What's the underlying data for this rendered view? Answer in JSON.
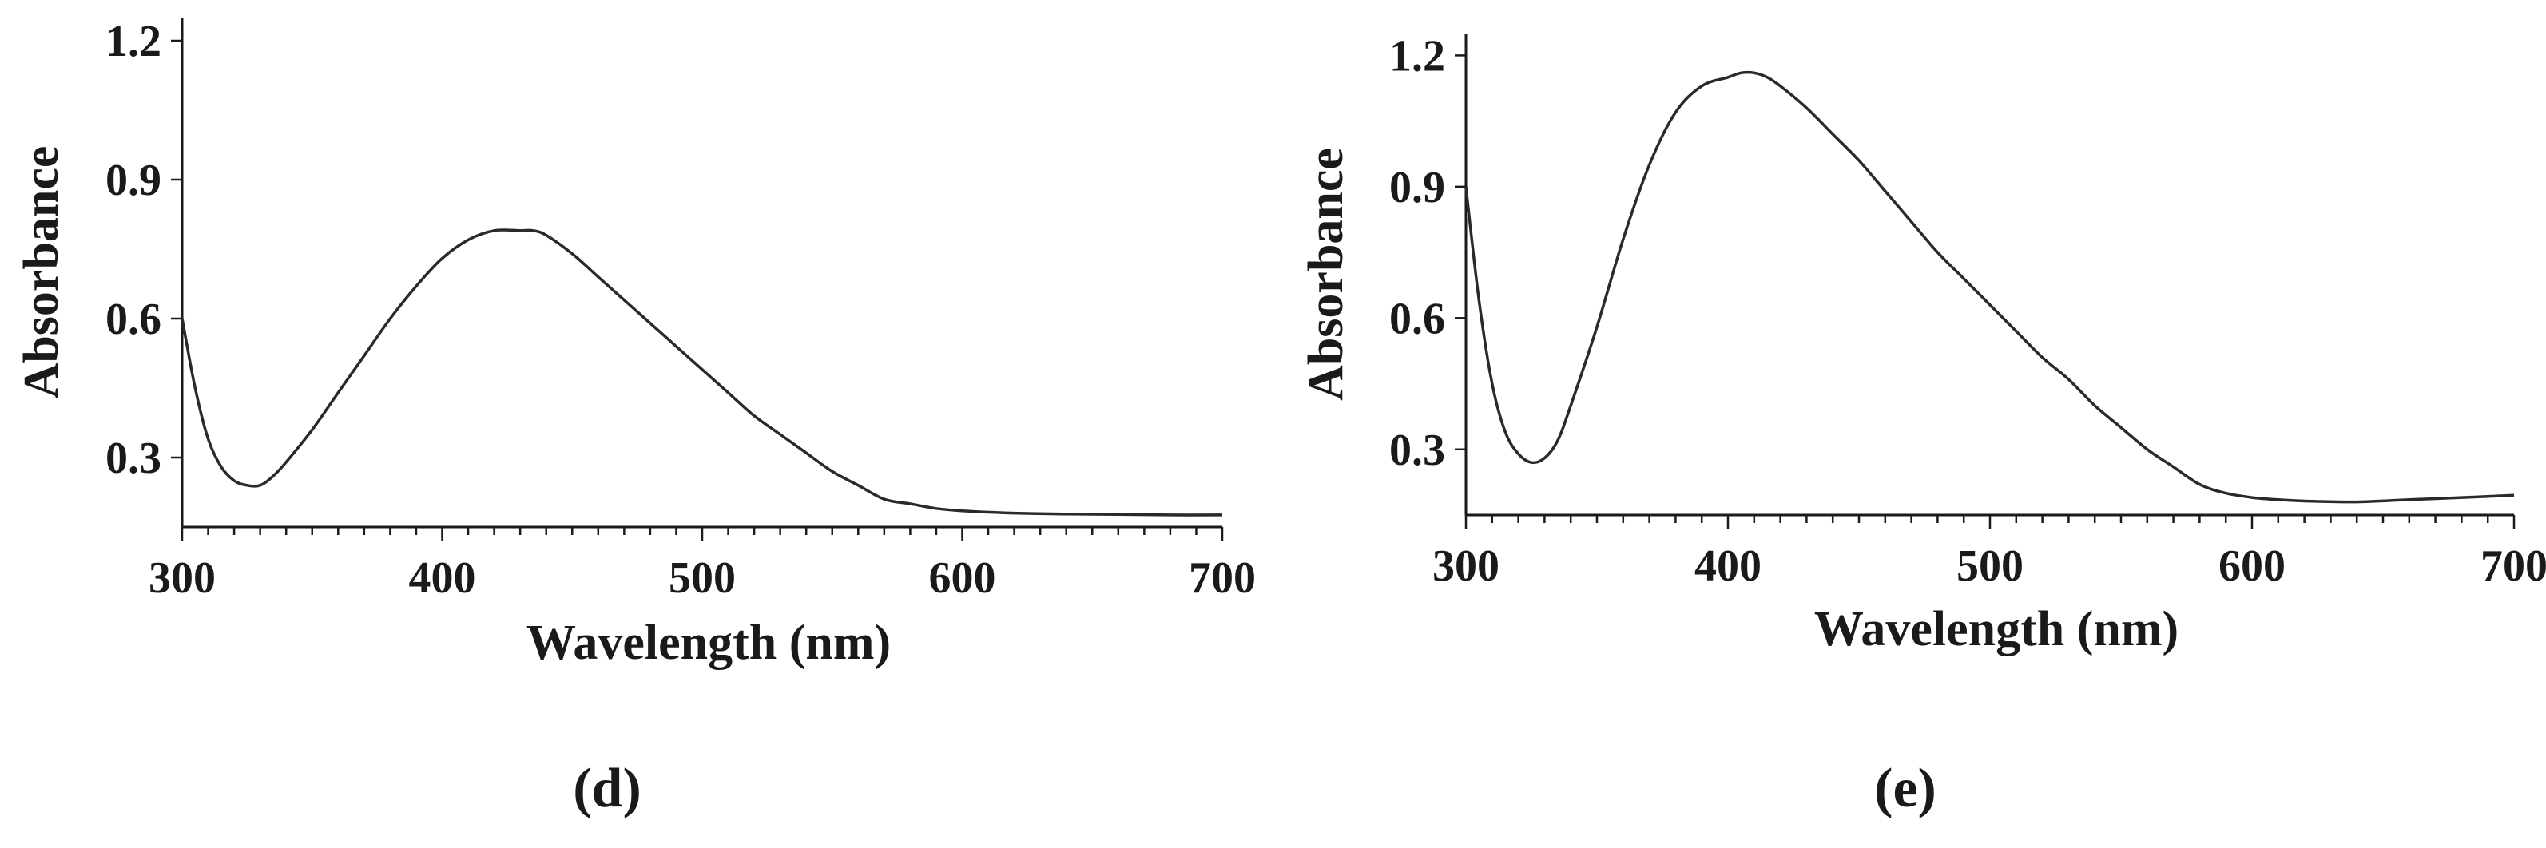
{
  "chart_data": [
    {
      "type": "line",
      "panel": "(d)",
      "xlabel": "Wavelength (nm)",
      "ylabel": "Absorbance",
      "xlim": [
        300,
        700
      ],
      "ylim": [
        0.15,
        1.25
      ],
      "xticks": [
        300,
        400,
        500,
        600,
        700
      ],
      "yticks": [
        0.3,
        0.6,
        0.9,
        1.2
      ],
      "xtick_labels": [
        "300",
        "400",
        "500",
        "600",
        "700"
      ],
      "ytick_labels": [
        "0.3",
        "0.6",
        "0.9",
        "1.2"
      ],
      "grid": false,
      "series": [
        {
          "x": [
            300,
            305,
            310,
            315,
            320,
            325,
            330,
            335,
            340,
            350,
            360,
            370,
            380,
            390,
            400,
            410,
            420,
            430,
            435,
            440,
            450,
            460,
            470,
            480,
            490,
            500,
            510,
            520,
            530,
            540,
            550,
            560,
            570,
            580,
            590,
            600,
            620,
            640,
            660,
            680,
            700
          ],
          "y": [
            0.6,
            0.45,
            0.34,
            0.28,
            0.25,
            0.24,
            0.24,
            0.26,
            0.29,
            0.36,
            0.44,
            0.52,
            0.6,
            0.67,
            0.73,
            0.77,
            0.79,
            0.79,
            0.79,
            0.78,
            0.74,
            0.69,
            0.64,
            0.59,
            0.54,
            0.49,
            0.44,
            0.39,
            0.35,
            0.31,
            0.27,
            0.24,
            0.21,
            0.2,
            0.19,
            0.185,
            0.18,
            0.178,
            0.177,
            0.176,
            0.176
          ]
        }
      ]
    },
    {
      "type": "line",
      "panel": "(e)",
      "xlabel": "Wavelength (nm)",
      "ylabel": "Absorbance",
      "xlim": [
        300,
        700
      ],
      "ylim": [
        0.15,
        1.25
      ],
      "xticks": [
        300,
        400,
        500,
        600,
        700
      ],
      "yticks": [
        0.3,
        0.6,
        0.9,
        1.2
      ],
      "xtick_labels": [
        "300",
        "400",
        "500",
        "600",
        "700"
      ],
      "ytick_labels": [
        "0.3",
        "0.6",
        "0.9",
        "1.2"
      ],
      "grid": false,
      "series": [
        {
          "x": [
            300,
            305,
            310,
            315,
            320,
            325,
            330,
            335,
            340,
            350,
            360,
            370,
            380,
            390,
            400,
            405,
            410,
            415,
            420,
            430,
            440,
            450,
            460,
            470,
            480,
            490,
            500,
            510,
            520,
            530,
            540,
            550,
            560,
            570,
            580,
            590,
            600,
            610,
            620,
            640,
            660,
            680,
            700
          ],
          "y": [
            0.9,
            0.64,
            0.45,
            0.34,
            0.29,
            0.27,
            0.28,
            0.32,
            0.4,
            0.58,
            0.78,
            0.95,
            1.07,
            1.13,
            1.15,
            1.16,
            1.16,
            1.15,
            1.13,
            1.08,
            1.02,
            0.96,
            0.89,
            0.82,
            0.75,
            0.69,
            0.63,
            0.57,
            0.51,
            0.46,
            0.4,
            0.35,
            0.3,
            0.26,
            0.22,
            0.2,
            0.19,
            0.185,
            0.182,
            0.18,
            0.185,
            0.19,
            0.195
          ]
        }
      ]
    }
  ]
}
